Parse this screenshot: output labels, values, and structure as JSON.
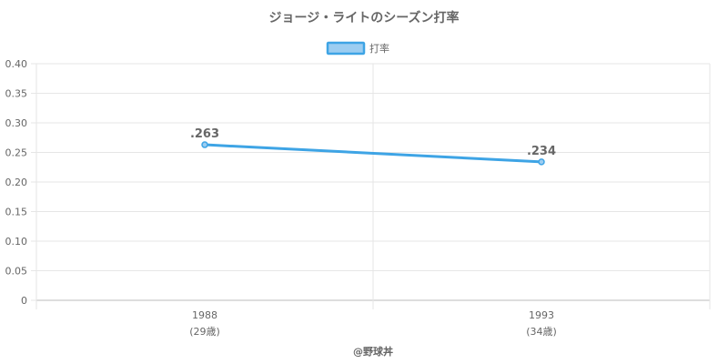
{
  "chart_data": {
    "type": "line",
    "title": "ジョージ・ライトのシーズン打率",
    "categories": [
      "1988",
      "1993"
    ],
    "category_sublabels": [
      "(29歳)",
      "(34歳)"
    ],
    "series": [
      {
        "name": "打率",
        "values": [
          0.263,
          0.234
        ],
        "data_labels": [
          ".263",
          ".234"
        ],
        "color": "#3ea4e5",
        "fill": "#9ccdf1"
      }
    ],
    "y_ticks": [
      "0",
      "0.05",
      "0.10",
      "0.15",
      "0.20",
      "0.25",
      "0.30",
      "0.35",
      "0.40"
    ],
    "ylim": [
      0,
      0.4
    ],
    "legend_position": "top-center",
    "grid": true
  },
  "credit": "@野球丼"
}
